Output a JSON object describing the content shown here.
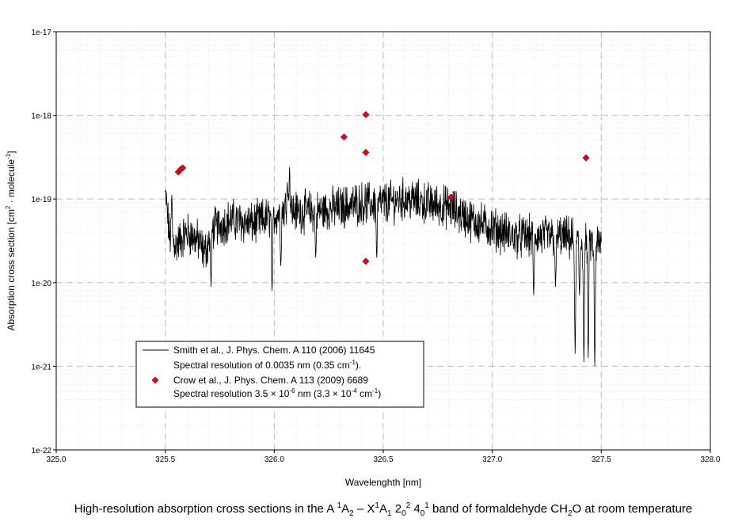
{
  "chart_data": {
    "type": "line",
    "xlabel": "Wavelenghth [nm]",
    "ylabel": {
      "pre": "Absorption cross section [cm",
      "sup1": "2",
      "mid": " · molecule",
      "sup2": "-1",
      "post": "]"
    },
    "caption": {
      "p1": "High-resolution absorption cross sections in the A ",
      "s1": "1",
      "p2": "A",
      "b1": "2",
      "p3": " – X",
      "s2": "1",
      "p4": "A",
      "b2": "1",
      "p5": " 2",
      "b3": "0",
      "s3": "2",
      "p6": " 4",
      "b4": "0",
      "s4": "1",
      "p7": " band of formaldehyde CH",
      "b5": "2",
      "p8": "O at room temperature"
    },
    "xlim": [
      325.0,
      328.0
    ],
    "ylim_log10": [
      -22,
      -17
    ],
    "x_ticks": [
      "325.0",
      "325.5",
      "326.0",
      "326.5",
      "327.0",
      "327.5",
      "328.0"
    ],
    "y_ticks": [
      "1e-22",
      "1e-21",
      "1e-20",
      "1e-19",
      "1e-18",
      "1e-17"
    ],
    "scale_y": "log",
    "grid": true,
    "legend_placement": "lower-left",
    "series": [
      {
        "name": "Smith et al., J. Phys. Chem. A 110 (2006) 11645",
        "legend_line2": {
          "pre": "Spectral resolution of  0.0035 nm (0.35 cm",
          "sup": "-1",
          "post": ")."
        },
        "kind": "line",
        "color": "#000000",
        "x_range": [
          325.5,
          327.5
        ],
        "log10_profile": [
          [
            325.5,
            -18.92
          ],
          [
            325.52,
            -19.45
          ],
          [
            325.55,
            -19.55
          ],
          [
            325.6,
            -19.4
          ],
          [
            325.65,
            -19.5
          ],
          [
            325.68,
            -19.65
          ],
          [
            325.72,
            -19.35
          ],
          [
            325.8,
            -19.25
          ],
          [
            325.9,
            -19.3
          ],
          [
            325.95,
            -19.25
          ],
          [
            326.0,
            -19.2
          ],
          [
            326.05,
            -19.1
          ],
          [
            326.1,
            -19.15
          ],
          [
            326.2,
            -19.15
          ],
          [
            326.3,
            -19.1
          ],
          [
            326.4,
            -19.05
          ],
          [
            326.5,
            -19.05
          ],
          [
            326.6,
            -19.0
          ],
          [
            326.7,
            -19.05
          ],
          [
            326.8,
            -19.1
          ],
          [
            326.9,
            -19.25
          ],
          [
            327.0,
            -19.35
          ],
          [
            327.1,
            -19.45
          ],
          [
            327.2,
            -19.45
          ],
          [
            327.3,
            -19.45
          ],
          [
            327.4,
            -19.5
          ],
          [
            327.5,
            -19.55
          ]
        ],
        "dips": [
          [
            325.71,
            -20.05
          ],
          [
            325.99,
            -20.1
          ],
          [
            326.03,
            -19.8
          ],
          [
            326.19,
            -19.7
          ],
          [
            326.47,
            -19.7
          ],
          [
            327.19,
            -20.15
          ],
          [
            327.29,
            -20.05
          ],
          [
            327.38,
            -20.85
          ],
          [
            327.4,
            -20.15
          ],
          [
            327.42,
            -20.95
          ],
          [
            327.44,
            -20.9
          ],
          [
            327.47,
            -21.0
          ]
        ],
        "peaks": [
          [
            325.5,
            -18.92
          ],
          [
            326.07,
            -18.62
          ],
          [
            326.06,
            -18.8
          ],
          [
            325.53,
            -18.95
          ]
        ]
      },
      {
        "name": "Crow et al., J. Phys. Chem. A 113 (2009) 6689",
        "legend_line2": {
          "pre": "Spectral resolution 3.5 × 10",
          "sup": "-6",
          "mid": " nm (3.3 × 10",
          "sup2": "-4",
          "post": " cm",
          "sup3": "-1",
          "end": ")"
        },
        "kind": "scatter",
        "color": "#e8001c",
        "points": [
          [
            325.56,
            2.1e-19
          ],
          [
            325.57,
            2.25e-19
          ],
          [
            325.58,
            2.35e-19
          ],
          [
            326.32,
            5.5e-19
          ],
          [
            326.42,
            1.02e-18
          ],
          [
            326.42,
            3.6e-19
          ],
          [
            326.42,
            1.8e-20
          ],
          [
            326.81,
            1.05e-19
          ],
          [
            327.43,
            3.1e-19
          ]
        ]
      }
    ]
  }
}
